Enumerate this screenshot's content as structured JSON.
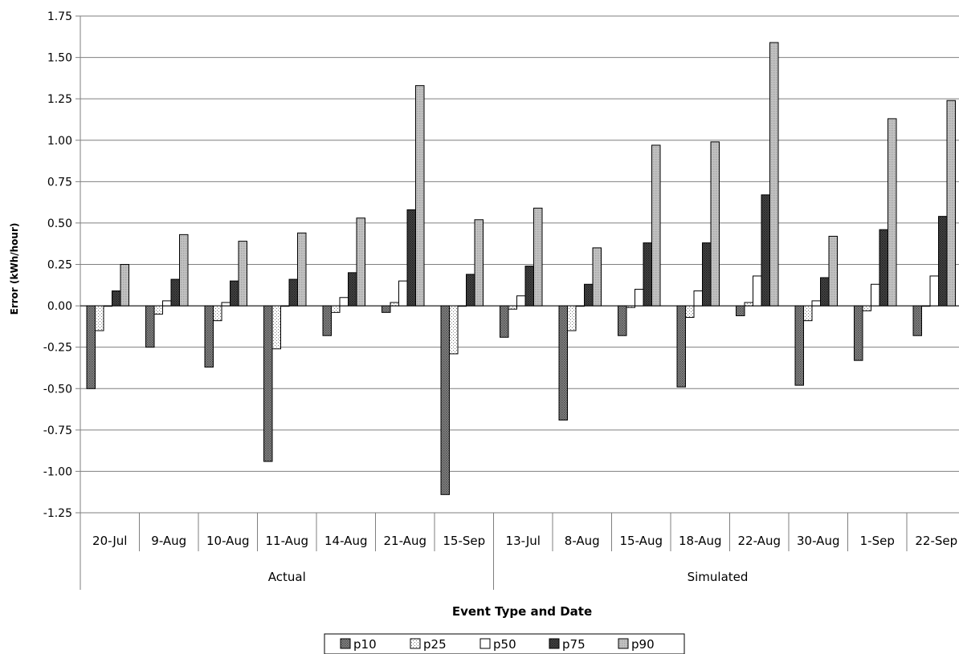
{
  "chart_data": {
    "type": "bar",
    "ylabel": "Error (kWh/hour)",
    "xlabel": "Event Type and Date",
    "ylim": [
      -1.25,
      1.75
    ],
    "yticks": [
      "1.75",
      "1.50",
      "1.25",
      "1.00",
      "0.75",
      "0.50",
      "0.25",
      "0.00",
      "-0.25",
      "-0.50",
      "-0.75",
      "-1.00",
      "-1.25"
    ],
    "grid": true,
    "legend_position": "bottom",
    "groups": [
      {
        "label": "Actual",
        "categories": [
          "20-Jul",
          "9-Aug",
          "10-Aug",
          "11-Aug",
          "14-Aug",
          "21-Aug",
          "15-Sep"
        ]
      },
      {
        "label": "Simulated",
        "categories": [
          "13-Jul",
          "8-Aug",
          "15-Aug",
          "18-Aug",
          "22-Aug",
          "30-Aug",
          "1-Sep",
          "22-Sep"
        ]
      }
    ],
    "categories": [
      "20-Jul",
      "9-Aug",
      "10-Aug",
      "11-Aug",
      "14-Aug",
      "21-Aug",
      "15-Sep",
      "13-Jul",
      "8-Aug",
      "15-Aug",
      "18-Aug",
      "22-Aug",
      "30-Aug",
      "1-Sep",
      "22-Sep"
    ],
    "series": [
      {
        "name": "p10",
        "color": "#6e6e6e",
        "pattern": "dark",
        "values": [
          -0.5,
          -0.25,
          -0.37,
          -0.94,
          -0.18,
          -0.04,
          -1.14,
          -0.19,
          -0.69,
          -0.18,
          -0.49,
          -0.06,
          -0.48,
          -0.33,
          -0.18
        ]
      },
      {
        "name": "p25",
        "color": "#ffffff",
        "pattern": "dots",
        "values": [
          -0.15,
          -0.05,
          -0.09,
          -0.26,
          -0.04,
          0.02,
          -0.29,
          -0.02,
          -0.15,
          -0.01,
          -0.07,
          0.02,
          -0.09,
          -0.03,
          0.0
        ]
      },
      {
        "name": "p50",
        "color": "#ffffff",
        "pattern": "white",
        "values": [
          0.0,
          0.03,
          0.02,
          0.0,
          0.05,
          0.15,
          0.0,
          0.06,
          0.0,
          0.1,
          0.09,
          0.18,
          0.03,
          0.13,
          0.18
        ]
      },
      {
        "name": "p75",
        "color": "#3c3c3c",
        "pattern": "darker",
        "values": [
          0.09,
          0.16,
          0.15,
          0.16,
          0.2,
          0.58,
          0.19,
          0.24,
          0.13,
          0.38,
          0.38,
          0.67,
          0.17,
          0.46,
          0.54
        ]
      },
      {
        "name": "p90",
        "color": "#b4b4b4",
        "pattern": "light",
        "values": [
          0.25,
          0.43,
          0.39,
          0.44,
          0.53,
          1.33,
          0.52,
          0.59,
          0.35,
          0.97,
          0.99,
          1.59,
          0.42,
          1.13,
          1.24
        ]
      }
    ]
  }
}
